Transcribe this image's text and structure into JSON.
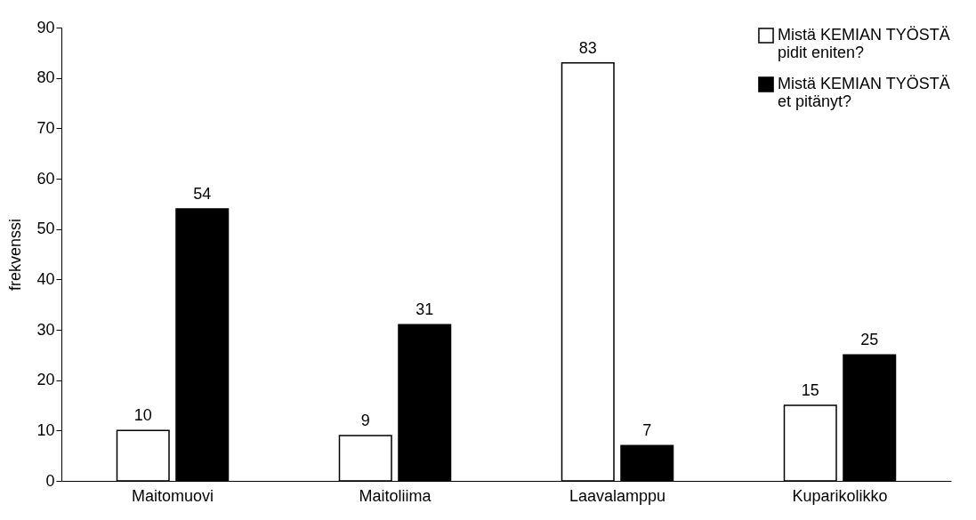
{
  "chart_data": {
    "type": "bar",
    "ylabel": "frekvenssi",
    "categories": [
      "Maitomuovi",
      "Maitoliima",
      "Laavalamppu",
      "Kuparikolikko"
    ],
    "series": [
      {
        "name": "Mistä KEMIAN TYÖSTÄ pidit eniten?",
        "color": "#ffffff",
        "values": [
          10,
          9,
          83,
          15
        ]
      },
      {
        "name": "Mistä KEMIAN TYÖSTÄ et pitänyt?",
        "color": "#000000",
        "values": [
          54,
          31,
          7,
          25
        ]
      }
    ],
    "ylim": [
      0,
      90
    ],
    "yticks": [
      0,
      10,
      20,
      30,
      40,
      50,
      60,
      70,
      80,
      90
    ],
    "grid": false,
    "legend": "top right",
    "data_labels": true
  }
}
